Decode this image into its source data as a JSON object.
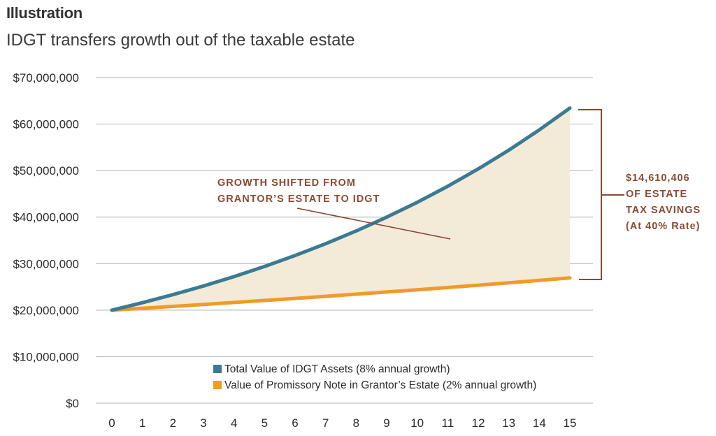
{
  "header": {
    "title": "Illustration",
    "subtitle": "IDGT transfers growth out of the taxable estate"
  },
  "colors": {
    "idgt": "#3b7a92",
    "note": "#f19a2a",
    "fill": "#f3ead8",
    "annotation": "#8a4a32",
    "grid": "#bfbfbf"
  },
  "chart_data": {
    "type": "line",
    "title": "IDGT transfers growth out of the taxable estate",
    "xlabel": "",
    "ylabel": "",
    "x": [
      0,
      1,
      2,
      3,
      4,
      5,
      6,
      7,
      8,
      9,
      10,
      11,
      12,
      13,
      14,
      15
    ],
    "xtick_labels": [
      "0",
      "1",
      "2",
      "3",
      "4",
      "5",
      "6",
      "7",
      "8",
      "9",
      "10",
      "11",
      "12",
      "13",
      "14",
      "15"
    ],
    "ylim": [
      0,
      70000000
    ],
    "yticks": [
      0,
      10000000,
      20000000,
      30000000,
      40000000,
      50000000,
      60000000,
      70000000
    ],
    "ytick_labels": [
      "$0",
      "$10,000,000",
      "$20,000,000",
      "$30,000,000",
      "$40,000,000",
      "$50,000,000",
      "$60,000,000",
      "$70,000,000"
    ],
    "grid": true,
    "series": [
      {
        "name": "Total Value of IDGT Assets (8% annual growth)",
        "color": "#3b7a92",
        "values": [
          20000000,
          21600000,
          23328000,
          25194000,
          27210000,
          29387000,
          31737000,
          34276000,
          37019000,
          39980000,
          43178000,
          46633000,
          50363000,
          54392000,
          58744000,
          63443000
        ]
      },
      {
        "name": "Value of Promissory Note in Grantor’s Estate (2% annual growth)",
        "color": "#f19a2a",
        "values": [
          20000000,
          20400000,
          20808000,
          21224000,
          21649000,
          22082000,
          22523000,
          22974000,
          23433000,
          23902000,
          24380000,
          24867000,
          25365000,
          25872000,
          26390000,
          26917000
        ]
      }
    ],
    "shaded_region": "between series (growth shifted)",
    "legend": {
      "placement": "bottom-center",
      "entries": [
        "Total Value of IDGT Assets (8% annual growth)",
        "Value of Promissory Note in Grantor’s Estate (2% annual growth)"
      ]
    },
    "annotations": {
      "growth_line1": "GROWTH SHIFTED FROM",
      "growth_line2": "GRANTOR’S ESTATE TO IDGT",
      "savings_line1": "$14,610,406",
      "savings_line2": "OF ESTATE",
      "savings_line3": "TAX SAVINGS",
      "savings_line4": "(At 40% Rate)"
    }
  }
}
